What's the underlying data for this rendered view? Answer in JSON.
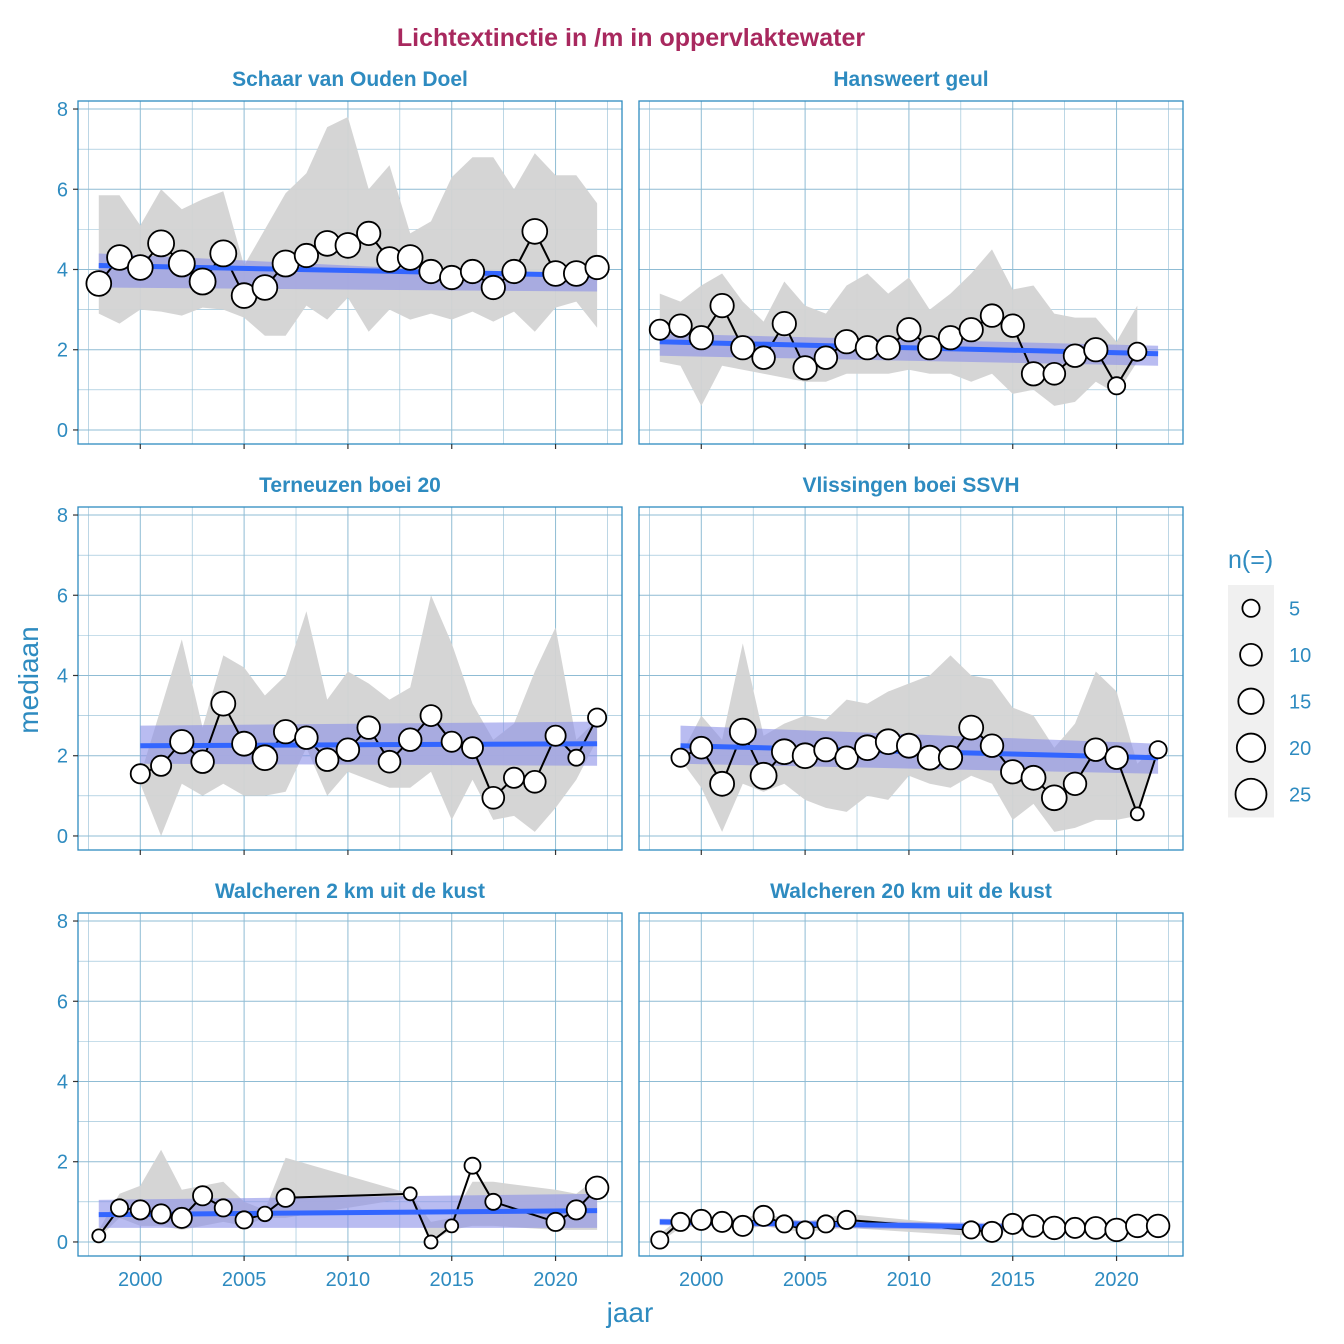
{
  "chart_data": {
    "type": "line",
    "title": "Lichtextinctie in /m in oppervlaktewater",
    "xlabel": "jaar",
    "ylabel": "mediaan",
    "xlim": [
      1997,
      2023.2
    ],
    "ylim": [
      -0.35,
      8.2
    ],
    "x_ticks": [
      2000,
      2005,
      2010,
      2015,
      2020
    ],
    "y_ticks": [
      0,
      2,
      4,
      6,
      8
    ],
    "grid": true,
    "legend": {
      "title": "n(=)",
      "position": "right",
      "sizes": [
        5,
        10,
        15,
        20,
        25
      ]
    },
    "panels": [
      {
        "name": "Schaar van Ouden Doel",
        "x": [
          1998,
          1999,
          2000,
          2001,
          2002,
          2003,
          2004,
          2005,
          2006,
          2007,
          2008,
          2009,
          2010,
          2011,
          2012,
          2013,
          2014,
          2015,
          2016,
          2017,
          2018,
          2019,
          2020,
          2021,
          2022
        ],
        "median": [
          3.65,
          4.3,
          4.05,
          4.65,
          4.15,
          3.7,
          4.4,
          3.35,
          3.55,
          4.15,
          4.35,
          4.65,
          4.6,
          4.9,
          4.25,
          4.3,
          3.95,
          3.8,
          3.95,
          3.55,
          3.95,
          4.95,
          3.9,
          3.9,
          4.05
        ],
        "n": [
          14,
          14,
          14,
          16,
          16,
          16,
          16,
          14,
          14,
          16,
          12,
          14,
          14,
          12,
          14,
          14,
          12,
          12,
          12,
          12,
          12,
          14,
          14,
          14,
          12
        ],
        "band_upper": [
          5.85,
          5.85,
          5.1,
          6.0,
          5.5,
          5.75,
          5.95,
          4.1,
          5.0,
          5.9,
          6.4,
          7.55,
          7.8,
          6.0,
          6.6,
          4.9,
          5.2,
          6.3,
          6.8,
          6.8,
          6.0,
          6.9,
          6.35,
          6.35,
          5.65
        ],
        "band_lower": [
          2.9,
          2.65,
          3.0,
          2.95,
          2.85,
          3.05,
          3.0,
          2.8,
          2.35,
          2.35,
          3.1,
          2.75,
          3.3,
          2.45,
          3.0,
          2.75,
          2.9,
          2.75,
          2.95,
          2.7,
          2.95,
          2.45,
          3.05,
          3.2,
          2.55
        ],
        "trend": [
          4.1,
          3.85
        ],
        "trend_band": [
          [
            4.4,
            3.8
          ],
          [
            3.55,
            3.45
          ]
        ]
      },
      {
        "name": "Hansweert geul",
        "x": [
          1998,
          1999,
          2000,
          2001,
          2002,
          2003,
          2004,
          2005,
          2006,
          2007,
          2008,
          2009,
          2010,
          2011,
          2012,
          2013,
          2014,
          2015,
          2016,
          2017,
          2018,
          2019,
          2020,
          2021,
          2022
        ],
        "median": [
          2.5,
          2.6,
          2.3,
          3.1,
          2.05,
          1.8,
          2.65,
          1.55,
          1.8,
          2.2,
          2.05,
          2.05,
          2.5,
          2.05,
          2.3,
          2.5,
          2.85,
          2.6,
          1.4,
          1.4,
          1.85,
          2.0,
          1.1,
          1.95,
          null
        ],
        "n": [
          8,
          11,
          12,
          12,
          12,
          11,
          12,
          12,
          11,
          12,
          12,
          12,
          12,
          12,
          12,
          12,
          11,
          11,
          12,
          10,
          11,
          12,
          5,
          6,
          null
        ],
        "band_upper": [
          3.4,
          3.2,
          3.6,
          3.9,
          3.2,
          2.7,
          3.7,
          3.1,
          2.9,
          3.6,
          3.9,
          3.4,
          3.8,
          3.0,
          3.4,
          3.9,
          4.5,
          3.5,
          3.6,
          2.9,
          2.8,
          2.8,
          2.2,
          3.1,
          null
        ],
        "band_lower": [
          1.7,
          1.6,
          0.6,
          1.6,
          1.5,
          1.4,
          1.3,
          1.2,
          1.2,
          1.4,
          1.4,
          1.4,
          1.5,
          1.4,
          1.4,
          1.2,
          1.4,
          0.9,
          1.0,
          0.6,
          0.7,
          1.2,
          0.9,
          1.7,
          null
        ],
        "trend": [
          2.2,
          1.9
        ],
        "trend_band": [
          [
            2.4,
            2.1
          ],
          [
            1.85,
            1.6
          ]
        ]
      },
      {
        "name": "Terneuzen boei 20",
        "x": [
          2000,
          2001,
          2002,
          2003,
          2004,
          2005,
          2006,
          2007,
          2008,
          2009,
          2010,
          2011,
          2012,
          2013,
          2014,
          2015,
          2016,
          2017,
          2018,
          2019,
          2020,
          2021,
          2022
        ],
        "median": [
          1.55,
          1.75,
          2.35,
          1.85,
          3.3,
          2.3,
          1.95,
          2.6,
          2.45,
          1.9,
          2.15,
          2.7,
          1.85,
          2.4,
          3.0,
          2.35,
          2.2,
          0.95,
          1.45,
          1.35,
          2.5,
          1.95,
          2.95
        ],
        "n": [
          7,
          8,
          12,
          11,
          13,
          13,
          14,
          12,
          11,
          11,
          11,
          11,
          10,
          11,
          9,
          8,
          9,
          10,
          8,
          10,
          8,
          4,
          6
        ],
        "band_upper": [
          1.5,
          3.2,
          4.9,
          2.7,
          4.5,
          4.2,
          3.5,
          4.0,
          5.6,
          3.4,
          4.1,
          3.8,
          3.4,
          3.7,
          6.0,
          4.8,
          3.3,
          2.4,
          2.8,
          4.1,
          5.2,
          2.4,
          2.9
        ],
        "band_lower": [
          1.3,
          0.0,
          1.3,
          1.0,
          1.3,
          1.0,
          1.0,
          1.1,
          2.2,
          1.0,
          1.6,
          1.4,
          1.2,
          1.2,
          1.6,
          0.4,
          1.4,
          0.4,
          0.5,
          0.1,
          0.7,
          1.4,
          2.4
        ],
        "trend": [
          2.25,
          2.3
        ],
        "trend_band": [
          [
            2.75,
            2.85
          ],
          [
            1.8,
            1.75
          ]
        ]
      },
      {
        "name": "Vlissingen boei SSVH",
        "x": [
          1999,
          2000,
          2001,
          2002,
          2003,
          2004,
          2005,
          2006,
          2007,
          2008,
          2009,
          2010,
          2011,
          2012,
          2013,
          2014,
          2015,
          2016,
          2017,
          2018,
          2019,
          2020,
          2021,
          2022
        ],
        "median": [
          1.95,
          2.2,
          1.3,
          2.6,
          1.5,
          2.1,
          2.0,
          2.15,
          1.95,
          2.2,
          2.35,
          2.25,
          1.95,
          1.95,
          2.7,
          2.25,
          1.6,
          1.45,
          0.95,
          1.3,
          2.15,
          1.95,
          0.55,
          2.15
        ],
        "n": [
          6,
          10,
          13,
          16,
          16,
          14,
          14,
          12,
          11,
          14,
          14,
          13,
          13,
          12,
          13,
          11,
          12,
          13,
          14,
          11,
          11,
          11,
          2,
          5
        ],
        "band_upper": [
          2.0,
          3.0,
          2.4,
          4.8,
          2.5,
          2.8,
          3.0,
          2.9,
          3.4,
          3.3,
          3.6,
          3.8,
          4.0,
          4.5,
          4.0,
          3.9,
          3.2,
          3.0,
          2.2,
          2.8,
          4.1,
          3.6,
          1.8,
          2.3
        ],
        "band_lower": [
          1.9,
          1.2,
          0.1,
          1.3,
          1.1,
          1.3,
          0.9,
          0.7,
          0.6,
          1.0,
          0.9,
          1.5,
          1.3,
          1.2,
          1.5,
          1.3,
          0.4,
          0.8,
          0.1,
          0.2,
          0.4,
          0.4,
          0.5,
          2.1
        ],
        "trend": [
          2.25,
          1.95
        ],
        "trend_band": [
          [
            2.75,
            2.3
          ],
          [
            1.8,
            1.55
          ]
        ]
      },
      {
        "name": "Walcheren 2 km uit de kust",
        "x": [
          1998,
          1999,
          2000,
          2001,
          2002,
          2003,
          2004,
          2005,
          2006,
          2007,
          2013,
          2014,
          2015,
          2016,
          2017,
          2020,
          2021,
          2022
        ],
        "median": [
          0.15,
          0.85,
          0.8,
          0.7,
          0.6,
          1.15,
          0.85,
          0.55,
          0.7,
          1.1,
          1.2,
          0.0,
          0.4,
          1.9,
          1.0,
          0.5,
          0.8,
          1.35
        ],
        "n": [
          2,
          5,
          7,
          7,
          8,
          7,
          5,
          5,
          3,
          6,
          2,
          2,
          2,
          4,
          4,
          6,
          7,
          11
        ],
        "band_upper": [
          0.3,
          1.2,
          1.4,
          2.3,
          1.3,
          1.4,
          1.5,
          1.0,
          0.8,
          2.1,
          1.2,
          0.5,
          0.6,
          1.5,
          1.5,
          1.3,
          1.2,
          1.6
        ],
        "band_lower": [
          0.1,
          0.6,
          0.4,
          0.4,
          0.3,
          0.4,
          0.5,
          0.4,
          0.6,
          0.6,
          1.1,
          0.0,
          0.3,
          0.4,
          0.4,
          0.3,
          0.3,
          0.3
        ],
        "trend": [
          0.68,
          0.78
        ],
        "trend_band": [
          [
            1.05,
            1.2
          ],
          [
            0.35,
            0.35
          ]
        ]
      },
      {
        "name": "Walcheren 20 km uit de kust",
        "x": [
          1998,
          1999,
          2000,
          2001,
          2002,
          2003,
          2004,
          2005,
          2006,
          2007,
          2013,
          2014,
          2015,
          2016,
          2017,
          2018,
          2019,
          2020,
          2021,
          2022
        ],
        "median": [
          0.05,
          0.5,
          0.55,
          0.5,
          0.4,
          0.65,
          0.45,
          0.3,
          0.45,
          0.55,
          0.3,
          0.25,
          0.45,
          0.4,
          0.35,
          0.35,
          0.35,
          0.3,
          0.4,
          0.4
        ],
        "n": [
          5,
          6,
          8,
          8,
          8,
          8,
          5,
          5,
          5,
          6,
          5,
          8,
          8,
          10,
          11,
          8,
          10,
          11,
          11,
          11
        ],
        "band_upper": [
          0.2,
          0.6,
          0.6,
          0.6,
          0.6,
          0.7,
          0.6,
          0.5,
          0.6,
          0.7,
          0.4,
          0.4,
          0.5,
          0.5,
          0.5,
          0.45,
          0.45,
          0.45,
          0.45,
          0.45
        ],
        "band_lower": [
          0.0,
          0.35,
          0.4,
          0.4,
          0.3,
          0.4,
          0.3,
          0.25,
          0.3,
          0.35,
          0.15,
          0.15,
          0.3,
          0.3,
          0.25,
          0.25,
          0.25,
          0.2,
          0.3,
          0.3
        ],
        "trend": [
          0.5,
          0.32
        ],
        "trend_band": [
          [
            0.58,
            0.42
          ],
          [
            0.42,
            0.22
          ]
        ]
      }
    ]
  },
  "colors": {
    "title": "#a8285e",
    "axis_text": "#2e8bc0",
    "panel_border": "#2e8bc0",
    "grid": "#8fbcd4",
    "band": "#d3d3d3",
    "trend": "#3366ff",
    "trend_band": "#8b8fe8",
    "point_fill": "#ffffff",
    "point_stroke": "#000000",
    "legend_key_bg": "#f0f0f0"
  }
}
